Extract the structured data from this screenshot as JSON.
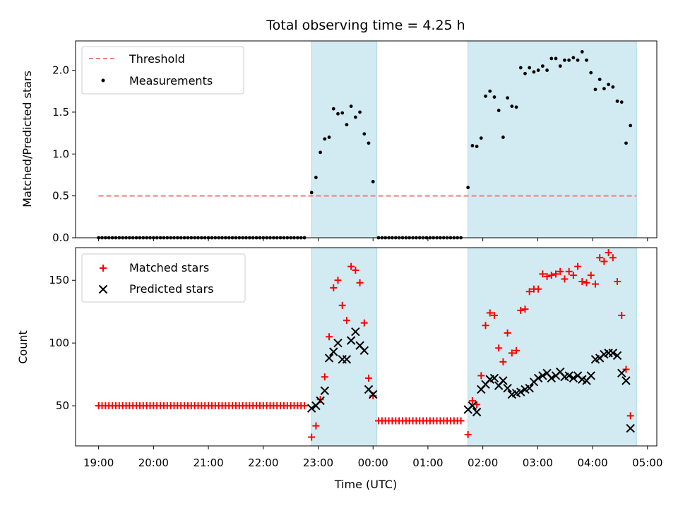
{
  "colors": {
    "threshold": "#f08080",
    "measurements": "#000000",
    "matched": "#ff0000",
    "predicted": "#000000",
    "span": "#add8e6"
  },
  "chart_data": {
    "type": "scatter",
    "title": "Total observing time = 4.25 h",
    "xlabel": "Time (UTC)",
    "x_unit": "hour of night (UTC clock, past midnight continues 24+)",
    "xlim": [
      18.58,
      29.17
    ],
    "x_tick_labels": [
      "19:00",
      "20:00",
      "21:00",
      "22:00",
      "23:00",
      "00:00",
      "01:00",
      "02:00",
      "03:00",
      "04:00",
      "05:00"
    ],
    "x_tick_values": [
      19,
      20,
      21,
      22,
      23,
      24,
      25,
      26,
      27,
      28,
      29
    ],
    "spans": [
      [
        22.88,
        24.07
      ],
      [
        25.73,
        28.8
      ]
    ],
    "panels": [
      {
        "ylabel": "Matched/Predicted stars",
        "ylim": [
          0,
          2.35
        ],
        "y_tick_labels": [
          "0.0",
          "0.5",
          "1.0",
          "1.5",
          "2.0"
        ],
        "y_tick_values": [
          0,
          0.5,
          1.0,
          1.5,
          2.0
        ],
        "legend": [
          "Threshold",
          "Measurements"
        ],
        "threshold": {
          "name": "Threshold",
          "y": 0.5,
          "x": [
            19.0,
            28.8
          ]
        },
        "measurements": {
          "name": "Measurements",
          "zero_segments": [
            [
              19.0,
              22.8,
              0.0625
            ],
            [
              24.1,
              25.65,
              0.0625
            ]
          ],
          "x": [
            22.88,
            22.96,
            23.04,
            23.12,
            23.2,
            23.28,
            23.36,
            23.44,
            23.52,
            23.6,
            23.68,
            23.76,
            23.84,
            23.92,
            24.0,
            24.07,
            25.73,
            25.81,
            25.89,
            25.97,
            26.05,
            26.13,
            26.21,
            26.29,
            26.37,
            26.45,
            26.53,
            26.61,
            26.69,
            26.77,
            26.85,
            26.93,
            27.01,
            27.09,
            27.17,
            27.25,
            27.33,
            27.41,
            27.49,
            27.57,
            27.65,
            27.73,
            27.81,
            27.89,
            27.97,
            28.05,
            28.13,
            28.21,
            28.29,
            28.37,
            28.45,
            28.53,
            28.61,
            28.69,
            28.77
          ],
          "y": [
            0.54,
            0.72,
            1.02,
            1.18,
            1.2,
            1.54,
            1.48,
            1.49,
            1.35,
            1.57,
            1.44,
            1.5,
            1.24,
            1.13,
            0.67,
            null,
            0.6,
            1.1,
            1.09,
            1.19,
            1.69,
            1.75,
            1.68,
            1.52,
            1.2,
            1.67,
            1.57,
            1.56,
            2.03,
            1.96,
            2.03,
            1.98,
            2.0,
            2.05,
            2.0,
            2.14,
            2.14,
            2.05,
            2.12,
            2.12,
            2.15,
            2.12,
            2.22,
            2.12,
            1.97,
            1.77,
            1.89,
            1.78,
            1.83,
            1.8,
            1.63,
            1.62,
            1.13,
            1.34,
            null
          ]
        }
      },
      {
        "ylabel": "Count",
        "ylim": [
          18,
          176
        ],
        "y_tick_labels": [
          "50",
          "100",
          "150"
        ],
        "y_tick_values": [
          50,
          100,
          150
        ],
        "legend": [
          "Matched stars",
          "Predicted stars"
        ],
        "flat_segments": [
          [
            19.0,
            22.8,
            0.0625,
            50
          ],
          [
            24.1,
            25.65,
            0.0625,
            38
          ]
        ],
        "matched": {
          "name": "Matched stars",
          "x": [
            22.88,
            22.96,
            23.04,
            23.12,
            23.2,
            23.28,
            23.36,
            23.44,
            23.52,
            23.6,
            23.68,
            23.76,
            23.84,
            23.92,
            24.0,
            24.07,
            25.73,
            25.81,
            25.89,
            25.97,
            26.05,
            26.13,
            26.21,
            26.29,
            26.37,
            26.45,
            26.53,
            26.61,
            26.69,
            26.77,
            26.85,
            26.93,
            27.01,
            27.09,
            27.17,
            27.25,
            27.33,
            27.41,
            27.49,
            27.57,
            27.65,
            27.73,
            27.81,
            27.89,
            27.97,
            28.05,
            28.13,
            28.21,
            28.29,
            28.37,
            28.45,
            28.53,
            28.61,
            28.69,
            28.77
          ],
          "y": [
            25,
            34,
            55,
            73,
            105,
            144,
            150,
            130,
            118,
            161,
            158,
            148,
            116,
            72,
            58,
            null,
            27,
            54,
            51,
            74,
            114,
            124,
            122,
            96,
            85,
            108,
            92,
            94,
            126,
            127,
            141,
            143,
            143,
            155,
            153,
            154,
            155,
            157,
            151,
            157,
            154,
            161,
            149,
            148,
            154,
            147,
            168,
            165,
            172,
            168,
            149,
            122,
            79,
            42,
            null
          ]
        },
        "predicted": {
          "name": "Predicted stars",
          "x": [
            22.88,
            22.96,
            23.04,
            23.12,
            23.2,
            23.28,
            23.36,
            23.44,
            23.52,
            23.6,
            23.68,
            23.76,
            23.84,
            23.92,
            24.0,
            25.73,
            25.81,
            25.89,
            25.97,
            26.05,
            26.13,
            26.21,
            26.29,
            26.37,
            26.45,
            26.53,
            26.61,
            26.69,
            26.77,
            26.85,
            26.93,
            27.01,
            27.09,
            27.17,
            27.25,
            27.33,
            27.41,
            27.49,
            27.57,
            27.65,
            27.73,
            27.81,
            27.89,
            27.97,
            28.05,
            28.13,
            28.21,
            28.29,
            28.37,
            28.45,
            28.53,
            28.61,
            28.69
          ],
          "y": [
            48,
            50,
            54,
            62,
            88,
            93,
            100,
            87,
            87,
            102,
            109,
            98,
            94,
            63,
            59,
            47,
            50,
            45,
            63,
            67,
            71,
            72,
            66,
            70,
            64,
            59,
            60,
            61,
            63,
            64,
            69,
            72,
            74,
            76,
            72,
            74,
            77,
            73,
            74,
            72,
            74,
            71,
            70,
            74,
            87,
            88,
            91,
            92,
            92,
            90,
            76,
            70,
            32
          ]
        }
      }
    ]
  }
}
